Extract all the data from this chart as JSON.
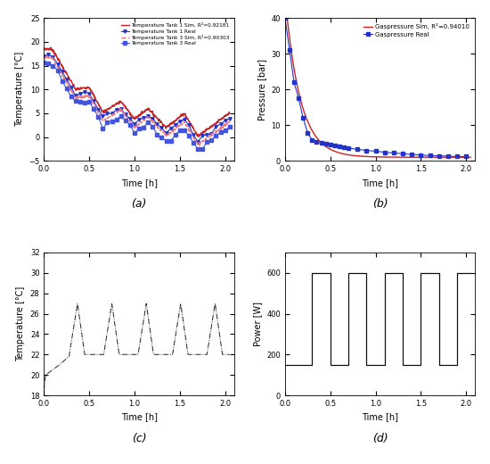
{
  "fig_width": 5.5,
  "fig_height": 5.2,
  "dpi": 100,
  "background_color": "#ffffff",
  "subplot_labels": [
    "(a)",
    "(b)",
    "(c)",
    "(d)"
  ],
  "plot_a": {
    "ylim": [
      -5,
      25
    ],
    "xlim": [
      0,
      2.1
    ],
    "yticks": [
      -5,
      0,
      5,
      10,
      15,
      20,
      25
    ],
    "xticks": [
      0,
      0.5,
      1.0,
      1.5,
      2.0
    ],
    "xlabel": "Time [h]",
    "ylabel": "Temperature [°C]",
    "legend": [
      {
        "label": "Temperature Tank 1 Sim, R²=0.92181",
        "color": "#cc2222",
        "ls": "-",
        "marker": "None"
      },
      {
        "label": "Temperature Tank 1 Real",
        "color": "#2233cc",
        "ls": "-",
        "marker": "v"
      },
      {
        "label": "Temperature Tank 3 Sim, R²=0.90303",
        "color": "#ee7777",
        "ls": "--",
        "marker": "None"
      },
      {
        "label": "Temperature Tank 3 Real",
        "color": "#4455dd",
        "ls": "-",
        "marker": "s"
      }
    ]
  },
  "plot_b": {
    "ylim": [
      0,
      40
    ],
    "xlim": [
      0,
      2.1
    ],
    "yticks": [
      0,
      10,
      20,
      30,
      40
    ],
    "xticks": [
      0,
      0.5,
      1.0,
      1.5,
      2.0
    ],
    "xlabel": "Time [h]",
    "ylabel": "Pressure [bar]",
    "legend": [
      {
        "label": "Gaspressure Sim, R²=0.94010",
        "color": "#cc2222",
        "ls": "-",
        "marker": "None"
      },
      {
        "label": "Gaspressure Real",
        "color": "#2233cc",
        "ls": "-",
        "marker": "s"
      }
    ]
  },
  "plot_c": {
    "ylim": [
      18,
      32
    ],
    "xlim": [
      0,
      2.1
    ],
    "yticks": [
      18,
      20,
      22,
      24,
      26,
      28,
      30,
      32
    ],
    "xticks": [
      0,
      0.5,
      1.0,
      1.5,
      2.0
    ],
    "xlabel": "Time [h]",
    "ylabel": "Temperature [°C]"
  },
  "plot_d": {
    "ylim": [
      0,
      700
    ],
    "xlim": [
      0,
      2.1
    ],
    "yticks": [
      0,
      200,
      400,
      600
    ],
    "xticks": [
      0,
      0.5,
      1.0,
      1.5,
      2.0
    ],
    "xlabel": "Time [h]",
    "ylabel": "Power [W]",
    "low": 150,
    "high": 600,
    "period": 0.4,
    "duty_on": 0.2,
    "start": 0.0,
    "n_cycles": 6
  }
}
